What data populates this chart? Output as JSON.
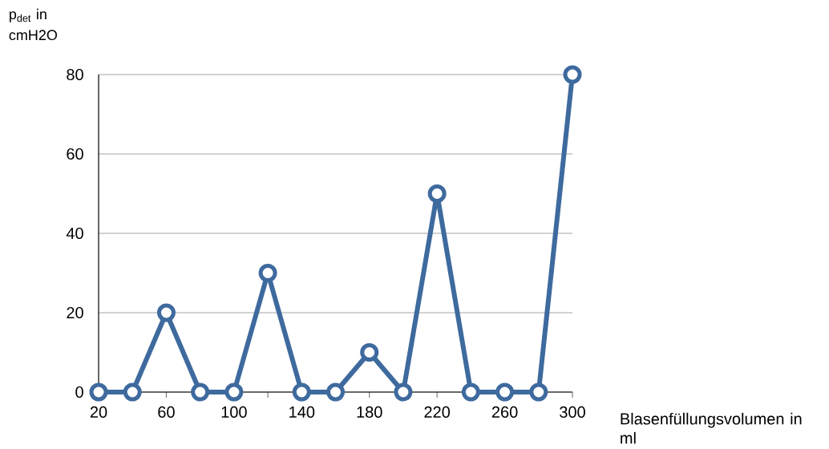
{
  "chart_data": {
    "type": "line",
    "ylabel": "p$_{det}$ in cmH2O",
    "xlabel": "Blasenfüllungsvolumen in ml",
    "x": [
      20,
      40,
      60,
      80,
      100,
      120,
      140,
      160,
      180,
      200,
      220,
      240,
      260,
      280,
      300
    ],
    "series": [
      {
        "color": "#3e6a9e",
        "values": [
          0,
          0,
          20,
          0,
          0,
          30,
          0,
          0,
          10,
          0,
          50,
          0,
          0,
          0,
          80
        ]
      }
    ],
    "xlim": [
      20,
      300
    ],
    "xticks": [
      20,
      {
        "value": 40,
        "label": null
      },
      60,
      {
        "value": 80,
        "label": null
      },
      100,
      {
        "value": 120,
        "label": null
      },
      140,
      {
        "value": 160,
        "label": null
      },
      180,
      {
        "value": 200,
        "label": null
      },
      220,
      {
        "value": 240,
        "label": null
      },
      260,
      {
        "value": 280,
        "label": null
      },
      300
    ],
    "ylim": [
      0,
      80
    ],
    "yticks": [
      0,
      20,
      40,
      60,
      80
    ],
    "grid": "y",
    "marker": "circle",
    "line_style": "solid"
  }
}
